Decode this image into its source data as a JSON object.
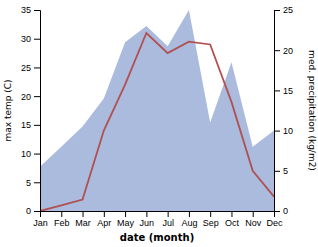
{
  "chart_data": {
    "type": "line",
    "categories": [
      "Jan",
      "Feb",
      "Mar",
      "Apr",
      "May",
      "Jun",
      "Jul",
      "Aug",
      "Sep",
      "Oct",
      "Nov",
      "Dec"
    ],
    "xlabel": "date (month)",
    "ylabel": "max temp (C)",
    "y2label": "med. precipitation (kg/m2)",
    "series": [
      {
        "type": "area",
        "axis": "y2",
        "color": "#aabbdd",
        "values": [
          5.5,
          8.0,
          10.5,
          14.0,
          21.0,
          23.0,
          20.5,
          25.0,
          11.0,
          18.5,
          8.0,
          10.0
        ]
      },
      {
        "type": "line",
        "color": "#b05050",
        "values": [
          0.0,
          1.0,
          2.0,
          14.0,
          22.0,
          31.0,
          27.5,
          29.5,
          29.0,
          19.0,
          7.0,
          2.5
        ]
      }
    ],
    "ylim": [
      0,
      35
    ],
    "yticks": [
      0,
      5,
      10,
      15,
      20,
      25,
      30,
      35
    ],
    "y2lim": [
      0,
      25
    ],
    "y2ticks": [
      0,
      5,
      10,
      15,
      20,
      25
    ]
  }
}
